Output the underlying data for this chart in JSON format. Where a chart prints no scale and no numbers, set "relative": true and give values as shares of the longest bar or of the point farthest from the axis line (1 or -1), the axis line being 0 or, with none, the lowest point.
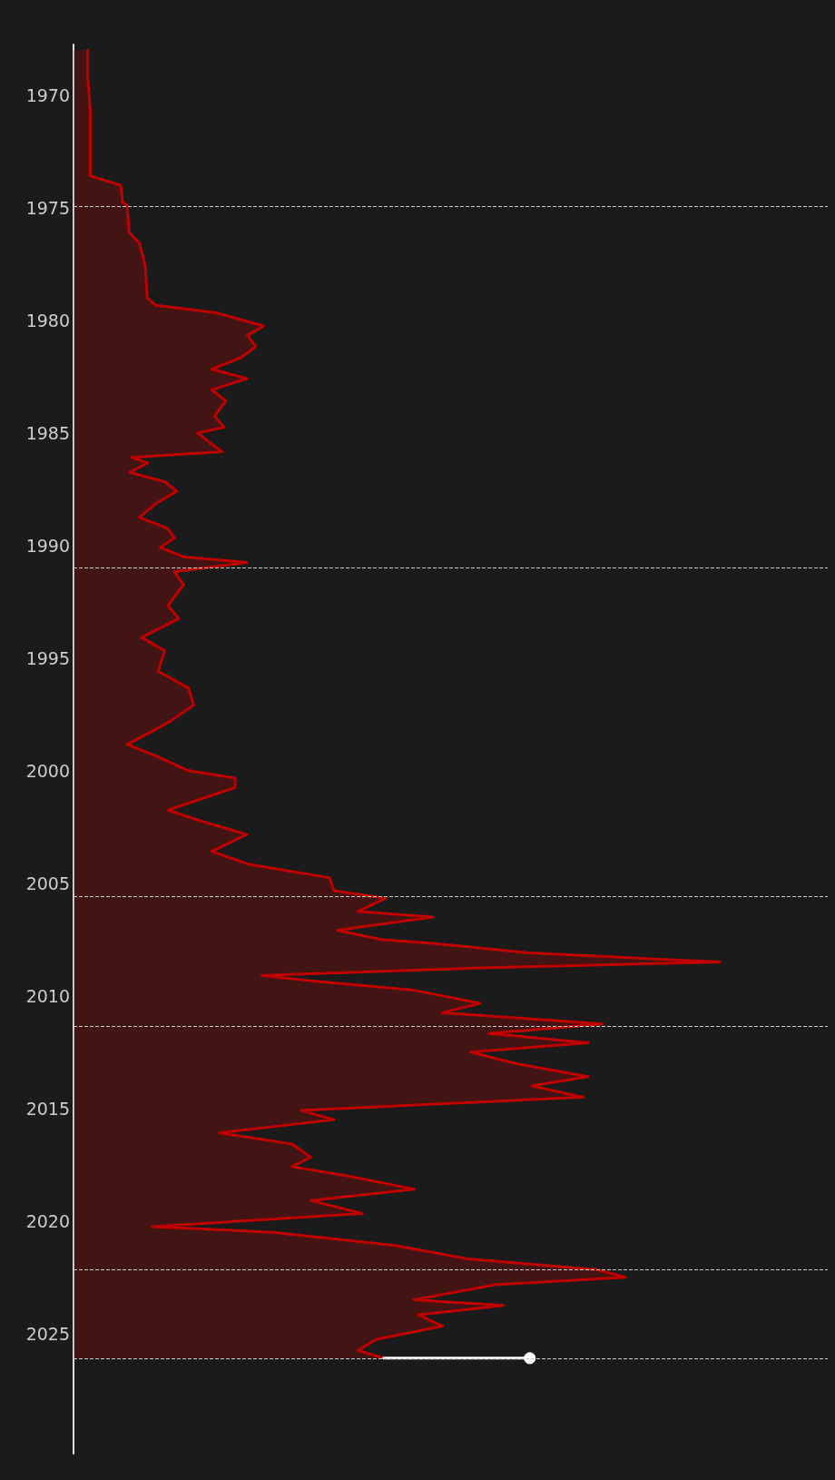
{
  "chart_data": {
    "type": "area",
    "orientation": "horizontal",
    "relative": true,
    "ylim": [
      "2030-05",
      "1967-10"
    ],
    "yticks": [
      "1970",
      "1975",
      "1980",
      "1985",
      "1990",
      "1995",
      "2000",
      "2005",
      "2010",
      "2015",
      "2020",
      "2025"
    ],
    "series": [
      {
        "color": "#c00000",
        "x": [
          "1968-01",
          "1969-03",
          "1970-10",
          "1973-08",
          "1974-01",
          "1974-10",
          "1974-12",
          "1976-02",
          "1976-08",
          "1977-08",
          "1979-01",
          "1979-05",
          "1979-09",
          "1980-04",
          "1980-09",
          "1981-03",
          "1981-09",
          "1982-03",
          "1982-08",
          "1983-02",
          "1983-08",
          "1984-04",
          "1984-10",
          "1985-01",
          "1985-07",
          "1985-11",
          "1986-02",
          "1986-05",
          "1986-10",
          "1987-03",
          "1987-08",
          "1988-03",
          "1988-10",
          "1989-04",
          "1989-09",
          "1990-02",
          "1990-07",
          "1990-10",
          "1991-03",
          "1991-10",
          "1992-09",
          "1993-04",
          "1994-02",
          "1994-09",
          "1995-08",
          "1996-05",
          "1997-02",
          "1997-11",
          "1998-07",
          "1998-11",
          "1999-05",
          "2000-01",
          "2000-05",
          "2000-10",
          "2001-10",
          "2002-04",
          "2002-11",
          "2003-08",
          "2004-03",
          "2004-10",
          "2005-05",
          "2005-09",
          "2006-04",
          "2006-07",
          "2007-02",
          "2007-07",
          "2007-09",
          "2008-02",
          "2008-07",
          "2008-10",
          "2009-02",
          "2009-05",
          "2009-10",
          "2010-05",
          "2010-10",
          "2011-04",
          "2011-09",
          "2012-02",
          "2012-07",
          "2013-01",
          "2013-08",
          "2014-01",
          "2014-07",
          "2015-02",
          "2015-07",
          "2016-02",
          "2016-08",
          "2017-03",
          "2017-08",
          "2018-01",
          "2018-08",
          "2019-02",
          "2019-09",
          "2020-04",
          "2020-07",
          "2021-02",
          "2021-09",
          "2022-03",
          "2022-07",
          "2022-11",
          "2023-07",
          "2023-10",
          "2024-03",
          "2024-09",
          "2025-04",
          "2025-10",
          "2026-02"
        ],
        "values": [
          0.022,
          0.022,
          0.026,
          0.026,
          0.073,
          0.076,
          0.083,
          0.086,
          0.102,
          0.111,
          0.114,
          0.127,
          0.221,
          0.294,
          0.269,
          0.282,
          0.258,
          0.214,
          0.268,
          0.214,
          0.236,
          0.218,
          0.233,
          0.192,
          0.214,
          0.23,
          0.09,
          0.115,
          0.087,
          0.141,
          0.16,
          0.126,
          0.102,
          0.146,
          0.156,
          0.134,
          0.17,
          0.268,
          0.156,
          0.17,
          0.146,
          0.163,
          0.105,
          0.141,
          0.131,
          0.178,
          0.186,
          0.148,
          0.105,
          0.083,
          0.126,
          0.178,
          0.25,
          0.25,
          0.146,
          0.199,
          0.268,
          0.214,
          0.272,
          0.396,
          0.403,
          0.483,
          0.44,
          0.556,
          0.408,
          0.476,
          0.556,
          0.702,
          1,
          0.643,
          0.291,
          0.367,
          0.527,
          0.629,
          0.571,
          0.818,
          0.643,
          0.796,
          0.614,
          0.684,
          0.796,
          0.709,
          0.789,
          0.352,
          0.403,
          0.226,
          0.338,
          0.367,
          0.338,
          0.425,
          0.527,
          0.367,
          0.447,
          0.122,
          0.309,
          0.498,
          0.607,
          0.811,
          0.854,
          0.651,
          0.527,
          0.665,
          0.534,
          0.571,
          0.469,
          0.44,
          0.48
        ]
      },
      {
        "type": "line",
        "color": "#ffffff",
        "marker": "circle",
        "x": [
          "2026-02",
          "2026-02"
        ],
        "values": [
          0.48,
          0.706
        ]
      }
    ],
    "ref_lines": [
      {
        "axis": "y",
        "value": "1974-12",
        "color": "#cccccc",
        "line_style": "dashed"
      },
      {
        "axis": "y",
        "value": "1991-01",
        "color": "#cccccc",
        "line_style": "dashed"
      },
      {
        "axis": "y",
        "value": "2005-08",
        "color": "#cccccc",
        "line_style": "dashed"
      },
      {
        "axis": "y",
        "value": "2011-05",
        "color": "#cccccc",
        "line_style": "dashed"
      },
      {
        "axis": "y",
        "value": "2022-03",
        "color": "#cccccc",
        "line_style": "dashed"
      },
      {
        "axis": "y",
        "value": "2026-02",
        "color": "#cccccc",
        "line_style": "dashed"
      }
    ]
  }
}
